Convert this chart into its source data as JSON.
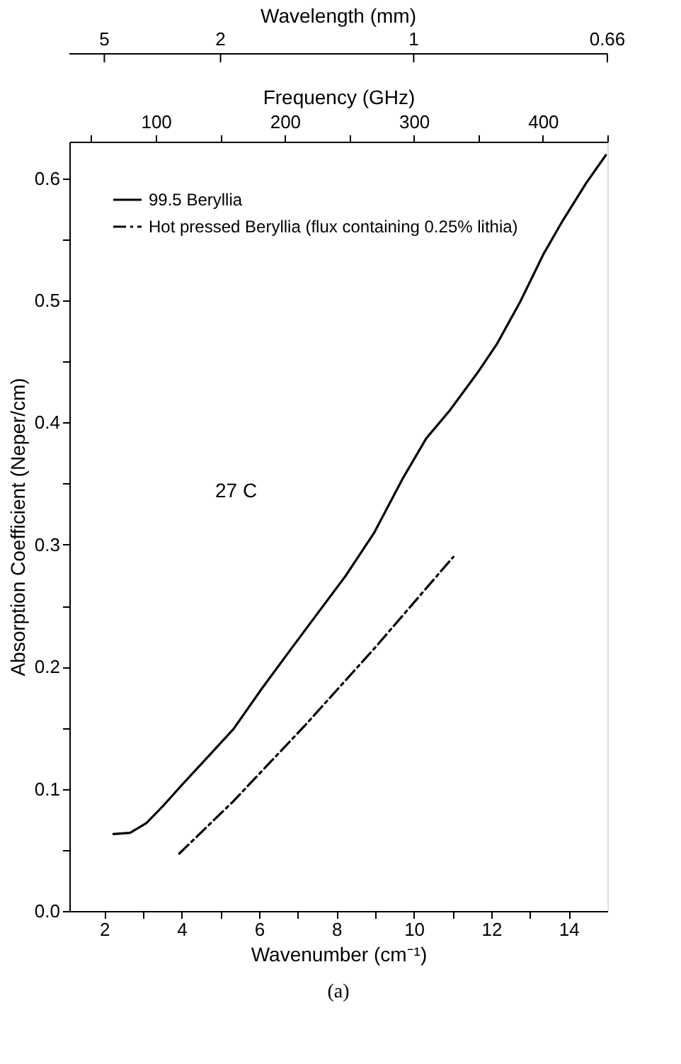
{
  "chart_data": {
    "type": "line",
    "xlabel": "Wavenumber (cm⁻¹)",
    "ylabel": "Absorption Coefficient (Neper/cm)",
    "x2label": "Frequency (GHz)",
    "annotations": [
      "27 C",
      "(a)",
      "Wavelength (mm)",
      "5",
      "2",
      "1",
      "0.66"
    ],
    "xlim": [
      1.1,
      15
    ],
    "xticks": [
      2,
      {
        "value": 3,
        "label": null
      },
      4,
      {
        "value": 5,
        "label": null
      },
      6,
      {
        "value": 7,
        "label": null
      },
      8,
      {
        "value": 9,
        "label": null
      },
      10,
      {
        "value": 11,
        "label": null
      },
      12,
      {
        "value": 13,
        "label": null
      },
      14
    ],
    "ylim": [
      0,
      0.63
    ],
    "yticks": [
      {
        "value": 0,
        "label": "0.0"
      },
      {
        "value": 0.05,
        "label": null
      },
      0.1,
      {
        "value": 0.15,
        "label": null
      },
      0.2,
      {
        "value": 0.25,
        "label": null
      },
      0.3,
      {
        "value": 0.35,
        "label": null
      },
      0.4,
      {
        "value": 0.45,
        "label": null
      },
      0.5,
      {
        "value": 0.55,
        "label": null
      },
      0.6
    ],
    "x2lim": [
      33,
      450
    ],
    "x2ticks": [
      {
        "value": 50,
        "label": null
      },
      100,
      {
        "value": 150,
        "label": null
      },
      200,
      {
        "value": 250,
        "label": null
      },
      300,
      {
        "value": 350,
        "label": null
      },
      400,
      {
        "value": 450,
        "label": null
      }
    ],
    "grid": false,
    "legend": "top left",
    "marker": "none",
    "series": [
      {
        "name": "99.5 Beryllia",
        "color": "#000000",
        "line_style": "solid",
        "x": [
          2.24,
          2.67,
          3.09,
          3.52,
          4.0,
          4.73,
          5.34,
          6.07,
          6.79,
          7.52,
          8.25,
          8.98,
          9.71,
          10.32,
          10.93,
          11.65,
          12.14,
          12.75,
          13.35,
          13.84,
          14.45,
          14.96
        ],
        "values": [
          0.063,
          0.064,
          0.072,
          0.086,
          0.103,
          0.128,
          0.149,
          0.182,
          0.213,
          0.244,
          0.275,
          0.31,
          0.354,
          0.387,
          0.41,
          0.441,
          0.464,
          0.499,
          0.538,
          0.565,
          0.596,
          0.619
        ]
      },
      {
        "name": "Hot pressed Beryllia (flux containing 0.25% lithia)",
        "color": "#000000",
        "line_style": "dashed",
        "x": [
          3.94,
          5.34,
          7.16,
          8.98,
          11.02
        ],
        "values": [
          0.047,
          0.09,
          0.151,
          0.215,
          0.29
        ]
      }
    ]
  }
}
